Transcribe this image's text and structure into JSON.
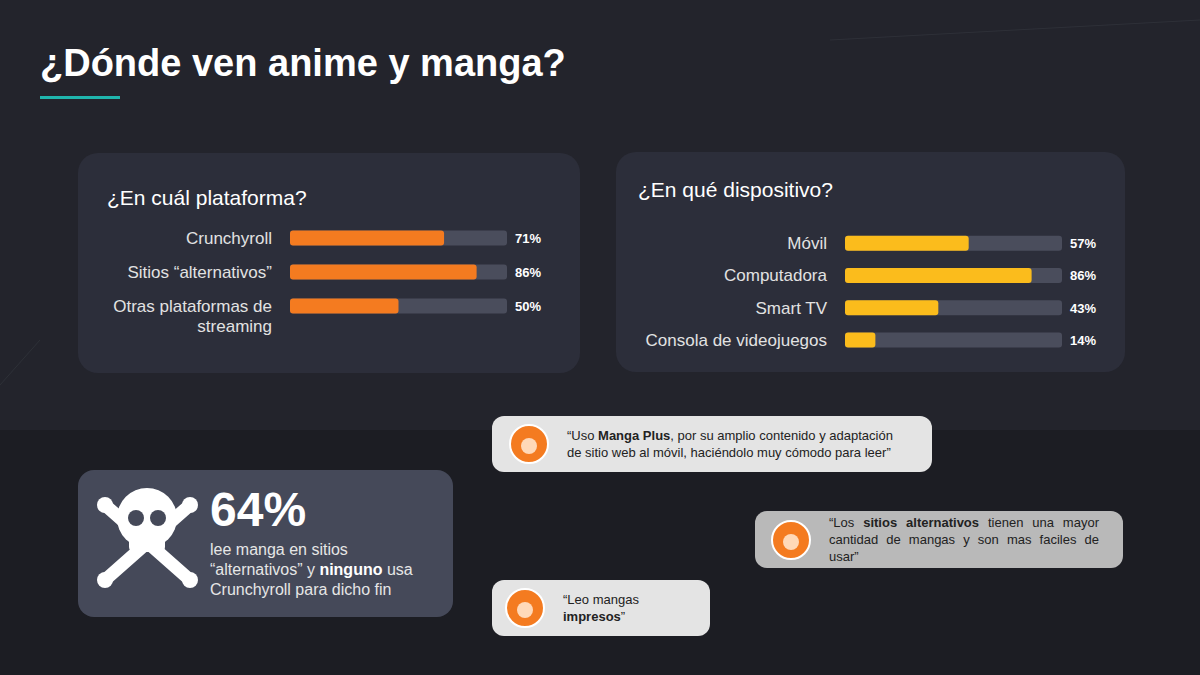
{
  "title": "¿Dónde ven anime y manga?",
  "chart_data": [
    {
      "type": "bar",
      "orientation": "horizontal",
      "title": "¿En cuál plataforma?",
      "categories": [
        "Crunchyroll",
        "Sitios “alternativos”",
        "Otras plataformas de streaming"
      ],
      "values": [
        71,
        86,
        50
      ],
      "value_labels": [
        "71%",
        "86%",
        "50%"
      ],
      "data_labels": true,
      "color": "#f47b20",
      "xlim": [
        0,
        100
      ],
      "tick_labels": "y"
    },
    {
      "type": "bar",
      "orientation": "horizontal",
      "title": "¿En qué dispositivo?",
      "categories": [
        "Móvil",
        "Computadora",
        "Smart TV",
        "Consola de videojuegos"
      ],
      "values": [
        57,
        86,
        43,
        14
      ],
      "value_labels": [
        "57%",
        "86%",
        "43%",
        "14%"
      ],
      "data_labels": true,
      "color": "#fbbc1c",
      "xlim": [
        0,
        100
      ],
      "tick_labels": "y"
    }
  ],
  "stat": {
    "text": "64%",
    "parts": [
      "lee manga en sitios “alternativos” y ",
      "ninguno",
      " usa Crunchyroll para dicho fin"
    ]
  },
  "quotes": [
    {
      "parts": [
        "“Uso ",
        "Manga Plus",
        ", por su amplio contenido y adaptación de sitio web al móvil, haciéndolo muy cómodo para leer”"
      ]
    },
    {
      "parts": [
        "“Los ",
        "sitios alternativos",
        " tienen una mayor cantidad de mangas y son mas faciles de usar”"
      ]
    },
    {
      "parts": [
        "“Leo mangas ",
        "impresos",
        "”"
      ]
    }
  ]
}
